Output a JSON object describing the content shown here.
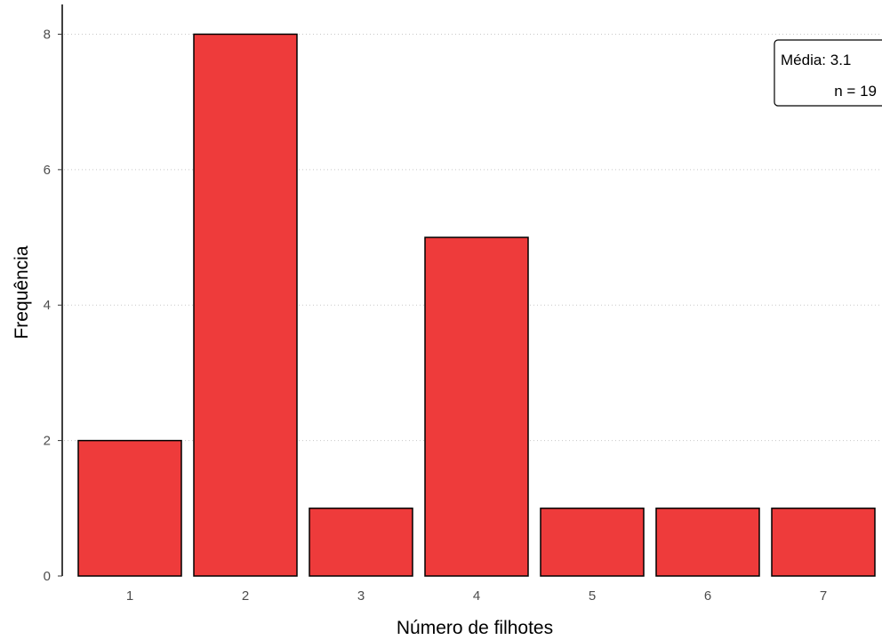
{
  "chart_data": {
    "type": "bar",
    "title": "",
    "xlabel": "Número de filhotes",
    "ylabel": "Frequência",
    "categories": [
      "1",
      "2",
      "3",
      "4",
      "5",
      "6",
      "7"
    ],
    "values": [
      2,
      8,
      1,
      5,
      1,
      1,
      1
    ],
    "ylim": [
      0,
      8.4
    ],
    "yticks": [
      "0",
      "2",
      "4",
      "6",
      "8"
    ],
    "grid": "horizontal-dotted",
    "bar_color": "#ee3b3b",
    "bar_edge_color": "#000000",
    "annotation": {
      "mean_label": "Média: 3.1",
      "n_label": "n = 19",
      "placement": "top-right"
    }
  }
}
